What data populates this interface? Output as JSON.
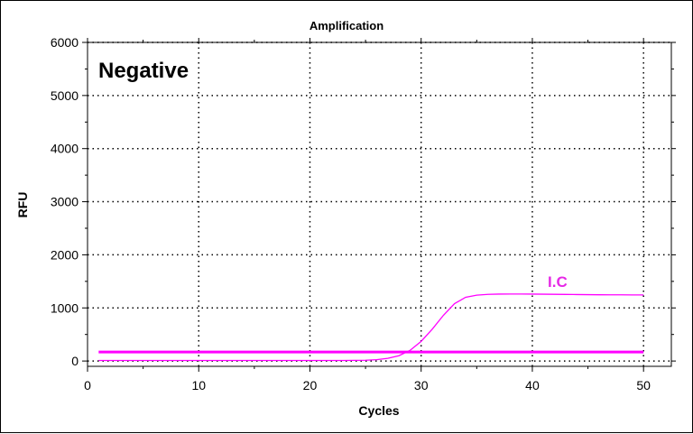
{
  "chart_data": {
    "type": "line",
    "title": "Amplification",
    "xlabel": "Cycles",
    "ylabel": "RFU",
    "xlim": [
      0,
      52.5
    ],
    "ylim": [
      -100,
      6000
    ],
    "x_ticks": [
      0,
      10,
      20,
      30,
      40,
      50
    ],
    "y_ticks": [
      0,
      1000,
      2000,
      3000,
      4000,
      5000,
      6000
    ],
    "grid": true,
    "annotations": [
      {
        "text": "Negative",
        "position": "top-left"
      },
      {
        "text": "I.C",
        "color": "#e628e6"
      }
    ],
    "threshold": {
      "value": 170,
      "x_range": [
        1,
        50
      ],
      "color": "#ff00ff"
    },
    "series": [
      {
        "label": "I.C",
        "color": "#ff00ff",
        "x": [
          1,
          2,
          3,
          4,
          5,
          6,
          7,
          8,
          9,
          10,
          11,
          12,
          13,
          14,
          15,
          16,
          17,
          18,
          19,
          20,
          21,
          22,
          23,
          24,
          25,
          26,
          27,
          28,
          29,
          30,
          31,
          32,
          33,
          34,
          35,
          36,
          37,
          38,
          39,
          40,
          41,
          42,
          43,
          44,
          45,
          46,
          47,
          48,
          49,
          50
        ],
        "y": [
          10,
          10,
          10,
          10,
          10,
          10,
          10,
          10,
          10,
          10,
          10,
          10,
          10,
          10,
          10,
          10,
          10,
          10,
          10,
          10,
          10,
          10,
          10,
          12,
          15,
          25,
          50,
          100,
          200,
          370,
          600,
          860,
          1080,
          1200,
          1240,
          1255,
          1260,
          1262,
          1262,
          1260,
          1258,
          1256,
          1254,
          1252,
          1250,
          1248,
          1247,
          1246,
          1245,
          1245
        ]
      }
    ]
  }
}
